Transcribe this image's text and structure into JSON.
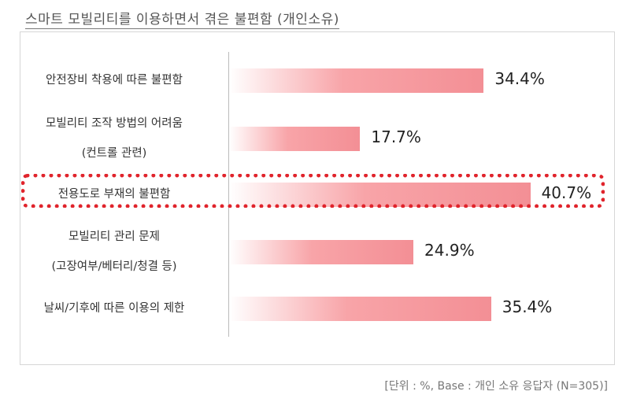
{
  "title": "스마트 모빌리티를 이용하면서 겪은 불편함 (개인소유)",
  "footnote": "[단위 : %, Base : 개인 소유 응답자 (N=305)]",
  "colors": {
    "bar": "#f38f95",
    "highlight": "#e0242c"
  },
  "chart_data": {
    "type": "bar",
    "orientation": "horizontal",
    "categories": [
      [
        "안전장비 착용에 따른 불편함"
      ],
      [
        "모빌리티 조작 방법의 어려움",
        "(컨트롤 관련)"
      ],
      [
        "전용도로 부재의 불편함"
      ],
      [
        "모빌리티 관리 문제",
        "(고장여부/베터리/청결 등)"
      ],
      [
        "날씨/기후에 따른 이용의 제한"
      ]
    ],
    "values": [
      34.4,
      17.7,
      40.7,
      24.9,
      35.4
    ],
    "value_labels": [
      "34.4%",
      "17.7%",
      "40.7%",
      "24.9%",
      "35.4%"
    ],
    "highlighted_index": 2,
    "unit": "%",
    "xlim": [
      0,
      50
    ]
  }
}
